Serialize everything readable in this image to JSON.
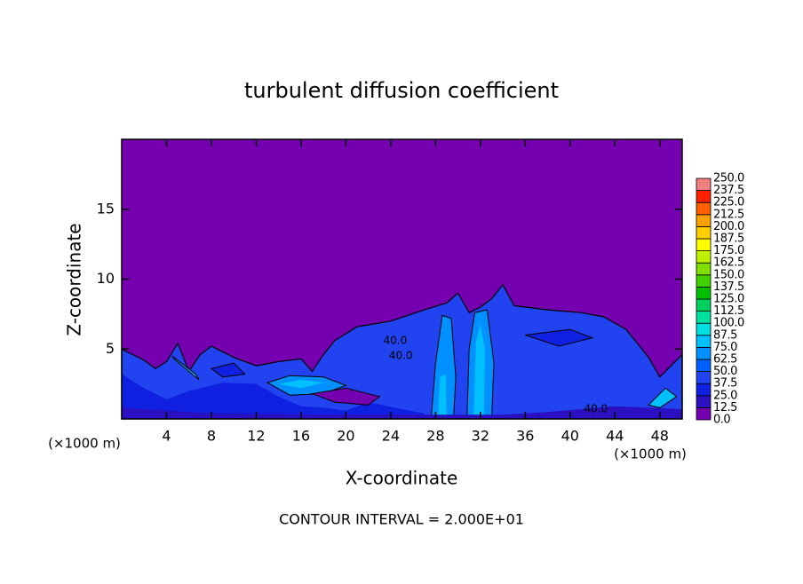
{
  "chart_data": {
    "type": "contour",
    "title": "turbulent diffusion coefficient",
    "x_label": "X-coordinate",
    "y_label": "Z-coordinate",
    "x_unit": "(×1000 m)",
    "contour_interval_label": "CONTOUR INTERVAL = 2.000E+01",
    "xlim": [
      0,
      50
    ],
    "ylim": [
      0,
      20
    ],
    "xticks": [
      4,
      8,
      12,
      16,
      20,
      24,
      28,
      32,
      36,
      40,
      44,
      48
    ],
    "yticks": [
      5,
      10,
      15
    ],
    "levels": [
      {
        "value": 0,
        "label": "0.0"
      },
      12.5,
      {
        "value": 25,
        "label": "25.0"
      },
      37.5,
      {
        "value": 50,
        "label": "50.0"
      },
      62.5,
      {
        "value": 75,
        "label": "75.0"
      },
      87.5,
      {
        "value": 100,
        "label": "100.0"
      },
      112.5,
      {
        "value": 125,
        "label": "125.0"
      },
      137.5,
      {
        "value": 150,
        "label": "150.0"
      },
      162.5,
      {
        "value": 175,
        "label": "175.0"
      },
      187.5,
      {
        "value": 200,
        "label": "200.0"
      },
      212.5,
      {
        "value": 225,
        "label": "225.0"
      },
      237.5,
      {
        "value": 250,
        "label": "250.0"
      }
    ],
    "level_colors": [
      "#7400b0",
      "#2a10c0",
      "#1020e0",
      "#2244f0",
      "#0060ff",
      "#0090ff",
      "#00c0ff",
      "#00e0e0",
      "#00e0a0",
      "#00d060",
      "#00c000",
      "#40d000",
      "#80e000",
      "#c0f000",
      "#ffff00",
      "#ffd000",
      "#ffa000",
      "#ff6000",
      "#ff2000",
      "#f08080"
    ],
    "contour_labels": [
      "40.0",
      "40.0",
      "40.0"
    ]
  }
}
